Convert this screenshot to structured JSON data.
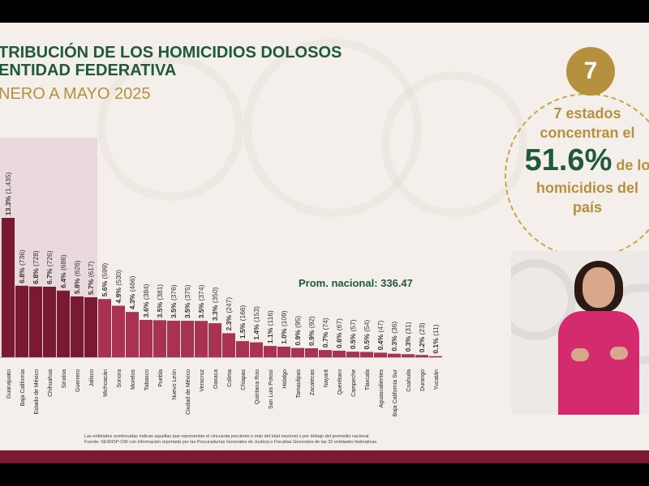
{
  "header": {
    "title_line1": "TRIBUCIÓN DE LOS HOMICIDIOS DOLOSOS",
    "title_line2": "ENTIDAD FEDERATIVA",
    "subtitle": "NERO A MAYO 2025"
  },
  "average_label": "Prom. nacional: 336.47",
  "notes": {
    "line1": "Las entidades sombreadas indican aquellas que representan el cincuenta porciento o más del total nacional o por debajo del promedio nacional.",
    "line2": "Fuente: SESNSP-CNI con información reportada por las Procuradurías Generales de Justicia o Fiscalías Generales de las 32 entidades federativas."
  },
  "highlight": {
    "badge": "7",
    "line1": "7 estados",
    "line2": "concentran el",
    "percent": "51.6%",
    "line3_suffix": "de lo",
    "line4": "homicidios del",
    "line5": "país"
  },
  "colors": {
    "dark_bar": "#7a1a32",
    "light_bar": "#a8324f",
    "green": "#1e5a3a",
    "gold": "#b5913f"
  },
  "chart_data": {
    "type": "bar",
    "title": "",
    "xlabel": "",
    "ylabel": "",
    "average": 336.47,
    "ylim": [
      0,
      1435
    ],
    "highlighted_count": 7,
    "categories": [
      "Guanajuato",
      "Baja California",
      "Estado de México",
      "Chihuahua",
      "Sinaloa",
      "Guerrero",
      "Jalisco",
      "Michoacán",
      "Sonora",
      "Morelos",
      "Tabasco",
      "Puebla",
      "Nuevo León",
      "Ciudad de México",
      "Veracruz",
      "Oaxaca",
      "Colima",
      "Chiapas",
      "Quintana Roo",
      "San Luis Potosí",
      "Hidalgo",
      "Tamaulipas",
      "Zacatecas",
      "Nayarit",
      "Querétaro",
      "Campeche",
      "Tlaxcala",
      "Aguascalientes",
      "Baja California Sur",
      "Coahuila",
      "Durango",
      "Yucatán"
    ],
    "values": [
      1435,
      736,
      728,
      726,
      686,
      626,
      617,
      599,
      530,
      466,
      384,
      381,
      376,
      375,
      374,
      350,
      247,
      166,
      153,
      116,
      109,
      95,
      92,
      74,
      67,
      57,
      54,
      47,
      36,
      31,
      23,
      11
    ],
    "pct_labels": [
      "13.3%",
      "6.8%",
      "6.8%",
      "6.7%",
      "6.4%",
      "5.8%",
      "5.7%",
      "5.6%",
      "4.9%",
      "4.3%",
      "3.6%",
      "3.5%",
      "3.5%",
      "3.5%",
      "3.5%",
      "3.3%",
      "2.3%",
      "1.5%",
      "1.4%",
      "1.1%",
      "1.0%",
      "0.9%",
      "0.9%",
      "0.7%",
      "0.6%",
      "0.5%",
      "0.5%",
      "0.4%",
      "0.3%",
      "0.3%",
      "0.2%",
      "0.1%"
    ],
    "count_labels": [
      "(1,435)",
      "(736)",
      "(728)",
      "(726)",
      "(686)",
      "(626)",
      "(617)",
      "(599)",
      "(530)",
      "(466)",
      "(384)",
      "(381)",
      "(376)",
      "(375)",
      "(374)",
      "(350)",
      "(247)",
      "(166)",
      "(153)",
      "(116)",
      "(109)",
      "(95)",
      "(92)",
      "(74)",
      "(67)",
      "(57)",
      "(54)",
      "(47)",
      "(36)",
      "(31)",
      "(23)",
      "(11)"
    ]
  }
}
